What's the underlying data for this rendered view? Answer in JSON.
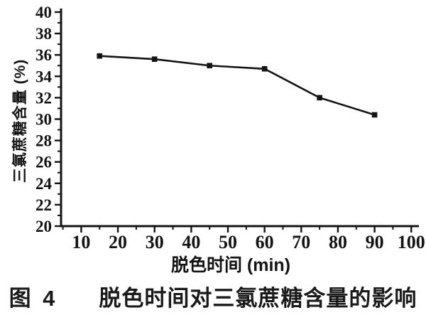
{
  "page": {
    "background": "#ffffff",
    "ink_color": "#141414"
  },
  "figure": {
    "caption_prefix": "图 4",
    "caption_title": "脱色时间对三氯蔗糖含量的影响"
  },
  "chart_data": {
    "type": "line",
    "title": "",
    "xlabel": "脱色时间 (min)",
    "ylabel": "三氯蔗糖含量 (%)",
    "x": [
      15,
      30,
      45,
      60,
      75,
      90
    ],
    "series": [
      {
        "name": "三氯蔗糖含量",
        "values": [
          35.9,
          35.6,
          35.0,
          34.7,
          32.0,
          30.4
        ]
      }
    ],
    "xlim": [
      4.5,
      101.5
    ],
    "ylim": [
      20,
      40
    ],
    "x_ticks": [
      10,
      20,
      30,
      40,
      50,
      60,
      70,
      80,
      90,
      100
    ],
    "x_minor_step": 5,
    "y_ticks": [
      20,
      22,
      24,
      26,
      28,
      30,
      32,
      34,
      36,
      38,
      40
    ],
    "y_minor_step": 1,
    "grid": false,
    "legend_position": "none",
    "marker": "filled-square",
    "line_color": "#141414",
    "marker_color": "#141414",
    "tick_direction": "out"
  }
}
